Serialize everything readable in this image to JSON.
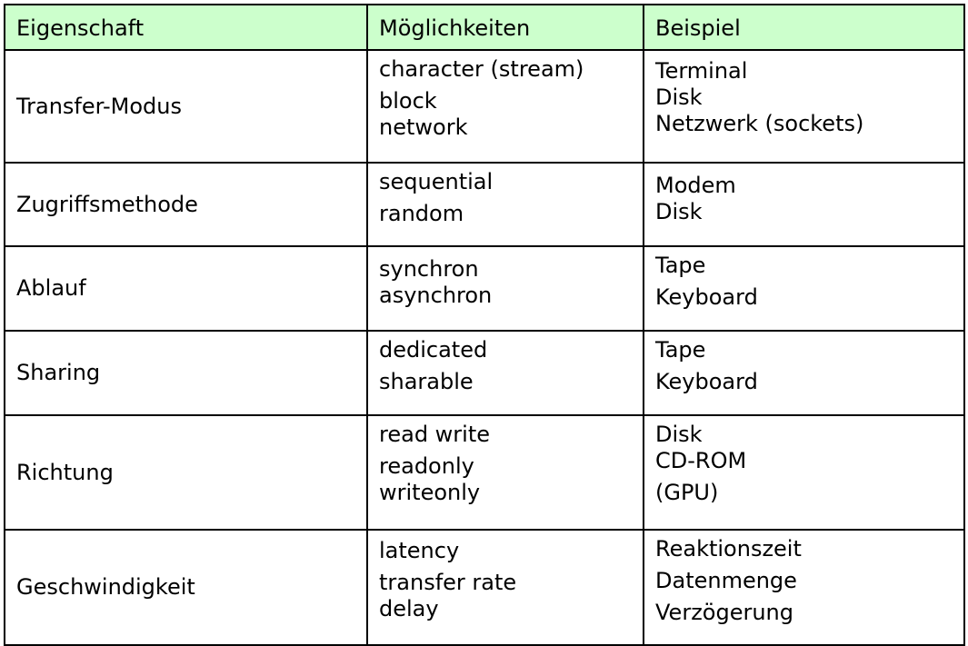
{
  "headers": [
    "Eigenschaft",
    "Möglichkeiten",
    "Beispiel"
  ],
  "rows": [
    {
      "property": "Transfer-Modus",
      "options": [
        "character (stream)",
        "block",
        "network"
      ],
      "examples": [
        "Terminal",
        "Disk",
        "Netzwerk (sockets)"
      ]
    },
    {
      "property": "Zugriffsmethode",
      "options": [
        "sequential",
        "random"
      ],
      "examples": [
        "Modem",
        "Disk"
      ]
    },
    {
      "property": "Ablauf",
      "options": [
        "synchron",
        "asynchron"
      ],
      "examples": [
        "Tape",
        "Keyboard"
      ]
    },
    {
      "property": "Sharing",
      "options": [
        "dedicated",
        "sharable"
      ],
      "examples": [
        "Tape",
        "Keyboard"
      ]
    },
    {
      "property": "Richtung",
      "options": [
        "read write",
        "readonly",
        "writeonly"
      ],
      "examples": [
        "Disk",
        "CD-ROM",
        "(GPU)"
      ]
    },
    {
      "property": "Geschwindigkeit",
      "options": [
        "latency",
        "transfer rate",
        "delay"
      ],
      "examples": [
        "Reaktionszeit",
        "Datenmenge",
        "Verzögerung"
      ]
    }
  ],
  "colors": {
    "header_background": "#ccffcc",
    "border": "#000000",
    "text": "#000000"
  }
}
